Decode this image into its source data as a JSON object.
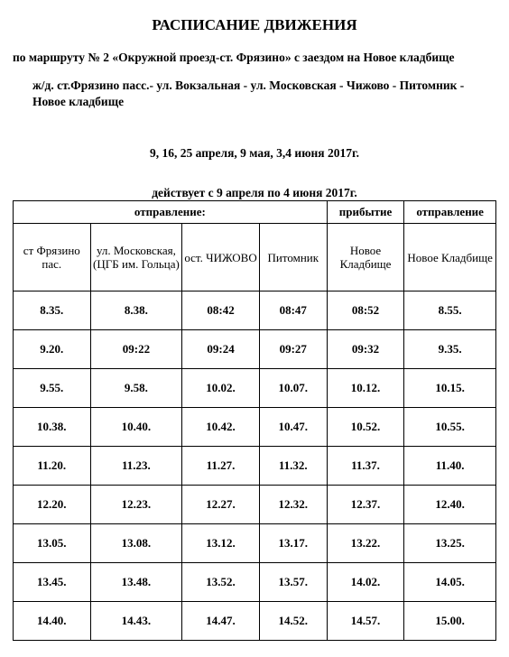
{
  "title": "РАСПИСАНИЕ ДВИЖЕНИЯ",
  "subtitle": "по маршруту № 2 «Окружной проезд-ст. Фрязино» с заездом на Новое кладбище",
  "route_desc": "ж/д. ст.Фрязино пасс.- ул. Вокзальная - ул. Московская - Чижово - Питомник - Новое кладбище",
  "dates_line": "9, 16, 25 апреля, 9 мая, 3,4 июня 2017г.",
  "valid_line": "действует с 9 апреля по 4 июня 2017г.",
  "sections": {
    "departure": "отправление:",
    "arrival": "прибытие",
    "departure2": "отправление"
  },
  "columns": [
    "ст Фрязино пас.",
    "ул. Московская, (ЦГБ им. Гольца)",
    "ост. ЧИЖОВО",
    "Питомник",
    "Новое Кладбище",
    "Новое Кладбище"
  ],
  "rows": [
    [
      "8.35.",
      "8.38.",
      "08:42",
      "08:47",
      "08:52",
      "8.55."
    ],
    [
      "9.20.",
      "09:22",
      "09:24",
      "09:27",
      "09:32",
      "9.35."
    ],
    [
      "9.55.",
      "9.58.",
      "10.02.",
      "10.07.",
      "10.12.",
      "10.15."
    ],
    [
      "10.38.",
      "10.40.",
      "10.42.",
      "10.47.",
      "10.52.",
      "10.55."
    ],
    [
      "11.20.",
      "11.23.",
      "11.27.",
      "11.32.",
      "11.37.",
      "11.40."
    ],
    [
      "12.20.",
      "12.23.",
      "12.27.",
      "12.32.",
      "12.37.",
      "12.40."
    ],
    [
      "13.05.",
      "13.08.",
      "13.12.",
      "13.17.",
      "13.22.",
      "13.25."
    ],
    [
      "13.45.",
      "13.48.",
      "13.52.",
      "13.57.",
      "14.02.",
      "14.05."
    ],
    [
      "14.40.",
      "14.43.",
      "14.47.",
      "14.52.",
      "14.57.",
      "15.00."
    ]
  ],
  "styling": {
    "font_family": "Times New Roman",
    "title_fontsize": 17,
    "body_fontsize": 13,
    "border_color": "#000000",
    "background_color": "#ffffff",
    "text_color": "#000000",
    "col_widths_pct": [
      16,
      19,
      16,
      14,
      16,
      19
    ]
  }
}
